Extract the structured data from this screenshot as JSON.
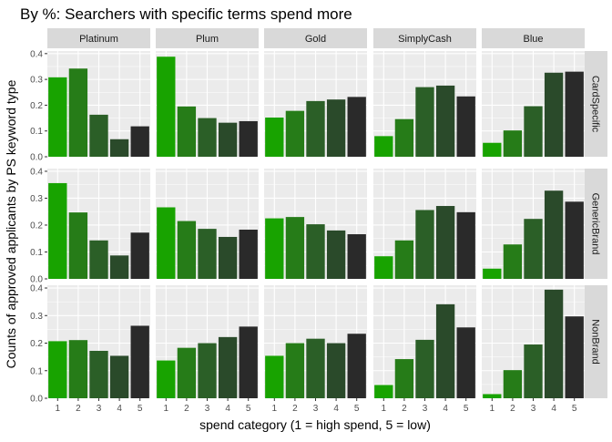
{
  "chart_data": {
    "type": "bar",
    "title": "By %: Searchers with specific terms spend more",
    "xlabel": "spend category (1 = high spend, 5 = low)",
    "ylabel": "Counts of approved applicants by PS keyword type",
    "col_facets": [
      "Platinum",
      "Plum",
      "Gold",
      "SimplyCash",
      "Blue"
    ],
    "row_facets": [
      "CardSpecific",
      "GenericBrand",
      "NonBrand"
    ],
    "categories": [
      "1",
      "2",
      "3",
      "4",
      "5"
    ],
    "y_ticks": [
      "0.0",
      "0.1",
      "0.2",
      "0.3",
      "0.4"
    ],
    "ylim": [
      0,
      0.41
    ],
    "grid": true,
    "legend": "none",
    "fill_colors": [
      "#18a300",
      "#267c18",
      "#2b5f27",
      "#2a4a2a",
      "#2a2a2a"
    ],
    "values": {
      "CardSpecific": {
        "Platinum": [
          0.308,
          0.342,
          0.163,
          0.068,
          0.118
        ],
        "Plum": [
          0.388,
          0.195,
          0.15,
          0.132,
          0.138
        ],
        "Gold": [
          0.152,
          0.178,
          0.216,
          0.222,
          0.232
        ],
        "SimplyCash": [
          0.08,
          0.146,
          0.27,
          0.276,
          0.234
        ],
        "Blue": [
          0.054,
          0.102,
          0.196,
          0.326,
          0.33
        ]
      },
      "GenericBrand": {
        "Platinum": [
          0.356,
          0.247,
          0.143,
          0.087,
          0.172
        ],
        "Plum": [
          0.266,
          0.215,
          0.186,
          0.156,
          0.183
        ],
        "Gold": [
          0.225,
          0.23,
          0.203,
          0.18,
          0.166
        ],
        "SimplyCash": [
          0.084,
          0.143,
          0.256,
          0.271,
          0.248
        ],
        "Blue": [
          0.038,
          0.128,
          0.223,
          0.328,
          0.287
        ]
      },
      "NonBrand": {
        "Platinum": [
          0.207,
          0.211,
          0.172,
          0.154,
          0.263
        ],
        "Plum": [
          0.137,
          0.183,
          0.2,
          0.222,
          0.26
        ],
        "Gold": [
          0.154,
          0.2,
          0.216,
          0.2,
          0.234
        ],
        "SimplyCash": [
          0.048,
          0.142,
          0.212,
          0.341,
          0.257
        ],
        "Blue": [
          0.015,
          0.102,
          0.195,
          0.394,
          0.297
        ]
      }
    }
  }
}
